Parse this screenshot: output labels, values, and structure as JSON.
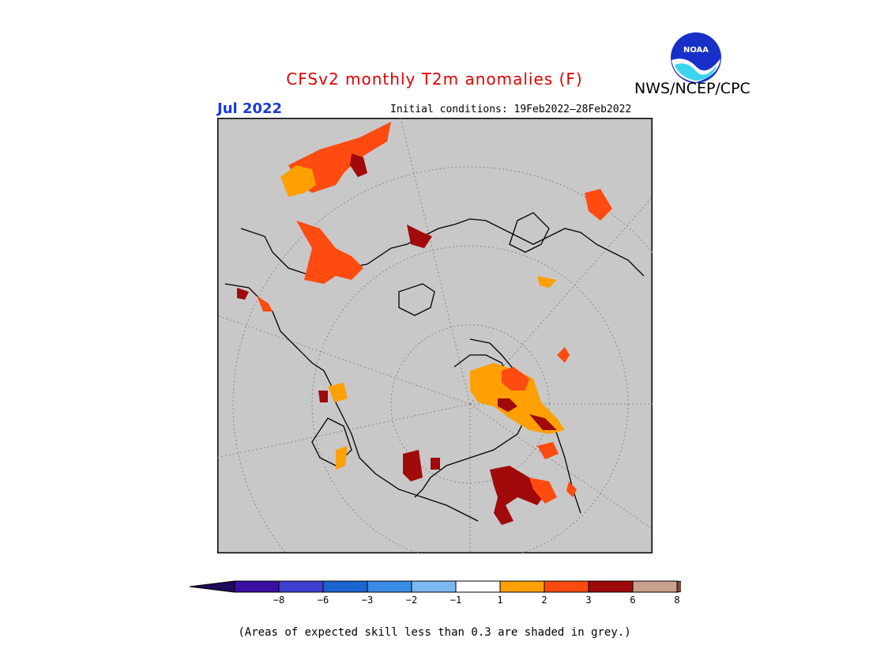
{
  "title": "CFSv2 monthly T2m anomalies (F)",
  "agency": "NWS/NCEP/CPC",
  "logo_text": "NOAA",
  "target_month": "Jul 2022",
  "initial_conditions": "Initial conditions: 19Feb2022–28Feb2022",
  "footnote": "(Areas of expected skill less than 0.3 are shaded in grey.)",
  "colors": {
    "title": "#e00000",
    "month": "#1a3ad8",
    "map_background": "#c8c8c8",
    "skill_mask": "#c8c8c8"
  },
  "colorbar": {
    "labels": [
      "−8",
      "−6",
      "−3",
      "−2",
      "−1",
      "1",
      "2",
      "3",
      "6",
      "8"
    ],
    "bins": [
      "#3a0ea0",
      "#4040d0",
      "#1c64d0",
      "#3a8ce6",
      "#7cb8f0",
      "#ffffff",
      "#ffa000",
      "#ff4a10",
      "#a00a0a",
      "#c8a08c"
    ],
    "low_extend_color": "#20085a",
    "high_extend_color": "#7a4a3c"
  },
  "anomaly_regions": [
    {
      "category": "2 to 3",
      "color": "#ff4a10"
    },
    {
      "category": "1 to 2",
      "color": "#ffa000"
    },
    {
      "category": "3 to 6",
      "color": "#a00a0a"
    }
  ]
}
